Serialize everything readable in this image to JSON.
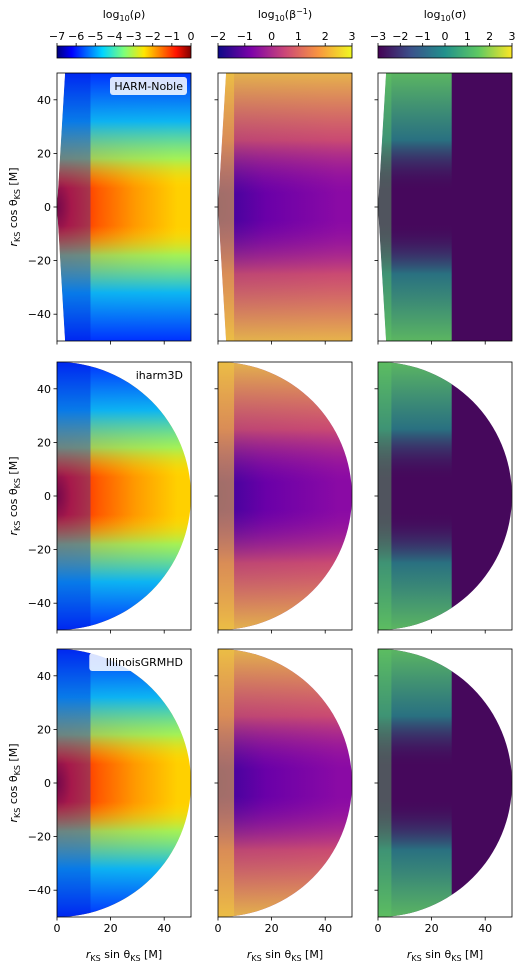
{
  "figure": {
    "colorbars": [
      {
        "label_main": "log",
        "label_sub": "10",
        "label_arg": "(ρ)",
        "ticks": [
          "−7",
          "−6",
          "−5",
          "−4",
          "−3",
          "−2",
          "−1",
          "0"
        ],
        "range": [
          -7,
          0
        ],
        "cmap": "jet"
      },
      {
        "label_main": "log",
        "label_sub": "10",
        "label_arg": "(β",
        "label_sup": "−1",
        "label_close": ")",
        "ticks": [
          "−2",
          "−1",
          "0",
          "1",
          "2",
          "3"
        ],
        "range": [
          -2,
          3
        ],
        "cmap": "plasma"
      },
      {
        "label_main": "log",
        "label_sub": "10",
        "label_arg": "(σ)",
        "ticks": [
          "−3",
          "−2",
          "−1",
          "0",
          "1",
          "2",
          "3"
        ],
        "range": [
          -3,
          3
        ],
        "cmap": "viridis"
      }
    ],
    "rows": [
      {
        "code": "HARM-Noble",
        "shape": "wedge"
      },
      {
        "code": "iharm3D",
        "shape": "halfdisk"
      },
      {
        "code": "IllinoisGRMHD",
        "shape": "halfdisk"
      }
    ],
    "ylabel": {
      "r": "r",
      "sub1": "KS",
      "mid": " cos θ",
      "sub2": "KS",
      "unit": " [M]"
    },
    "xlabel": {
      "r": "r",
      "sub1": "KS",
      "mid": " sin θ",
      "sub2": "KS",
      "unit": " [M]"
    },
    "yticks": [
      "40",
      "20",
      "0",
      "−20",
      "−40"
    ],
    "xticks": [
      "0",
      "20",
      "40"
    ]
  },
  "chart_data": {
    "type": "heatmap",
    "title": "",
    "panels_grid": {
      "rows": [
        "HARM-Noble",
        "iharm3D",
        "IllinoisGRMHD"
      ],
      "columns": [
        "log10(ρ)",
        "log10(β^-1)",
        "log10(σ)"
      ]
    },
    "xlim": [
      0,
      50
    ],
    "ylim": [
      -50,
      50
    ],
    "xticks": [
      0,
      20,
      40
    ],
    "yticks": [
      -40,
      -20,
      0,
      20,
      40
    ],
    "colorbar_ranges": {
      "log10(rho)": [
        -7,
        0
      ],
      "log10(beta^-1)": [
        -2,
        3
      ],
      "log10(sigma)": [
        -3,
        3
      ]
    },
    "approx_fields": {
      "log10(rho)": {
        "midplane_inner": -0.3,
        "midplane_outer": -1.0,
        "pole": -6.5
      },
      "log10(beta^-1)": {
        "disk": -1.0,
        "jet_region": 2.5
      },
      "log10(sigma)": {
        "disk": -3.0,
        "polar_funnel": 1.5
      }
    }
  }
}
